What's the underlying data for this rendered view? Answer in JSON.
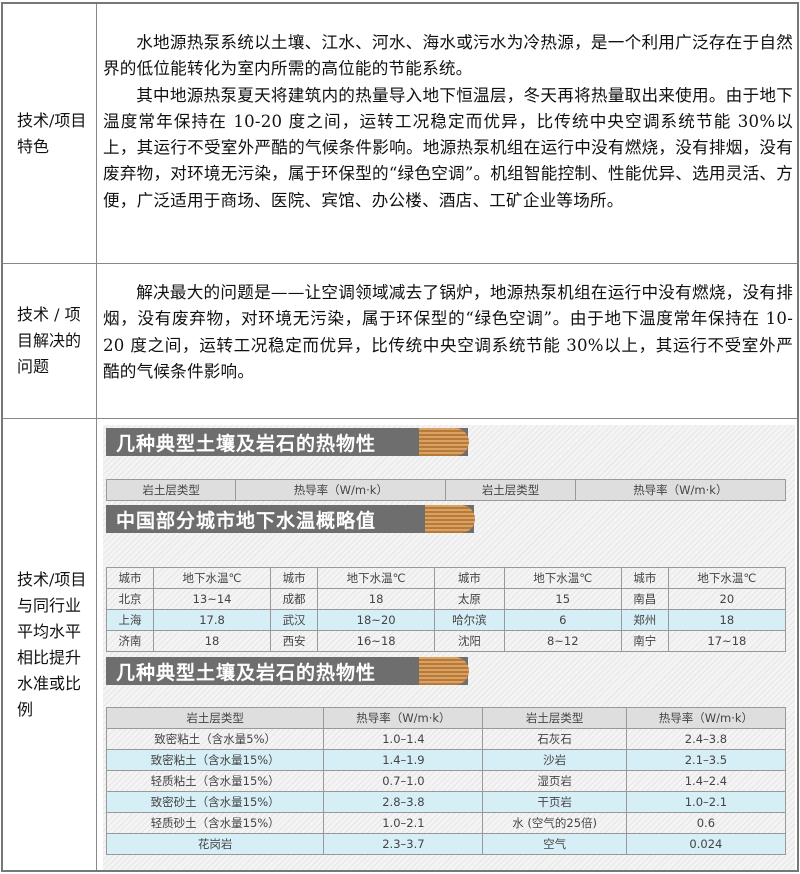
{
  "rows": [
    {
      "label": "技术/项目特色",
      "paragraphs": [
        "水地源热泵系统以土壤、江水、河水、海水或污水为冷热源，是一个利用广泛存在于自然界的低位能转化为室内所需的高位能的节能系统。",
        "其中地源热泵夏天将建筑内的热量导入地下恒温层，冬天再将热量取出来使用。由于地下温度常年保持在 10-20 度之间，运转工况稳定而优异，比传统中央空调系统节能 30%以上，其运行不受室外严酷的气候条件影响。地源热泵机组在运行中没有燃烧，没有排烟，没有废弃物，对环境无污染，属于环保型的“绿色空调”。机组智能控制、性能优异、选用灵活、方便，广泛适用于商场、医院、宾馆、办公楼、酒店、工矿企业等场所。"
      ]
    },
    {
      "label": "技术 / 项目解决的问题",
      "paragraphs": [
        "解决最大的问题是——让空调领域减去了锅炉，地源热泵机组在运行中没有燃烧，没有排烟，没有废弃物，对环境无污染，属于环保型的“绿色空调”。由于地下温度常年保持在 10-20 度之间，运转工况稳定而优异，比传统中央空调系统节能 30%以上，其运行不受室外严酷的气候条件影响。"
      ]
    },
    {
      "label": "技术/项目与同行业平均水平相比提升水准或比例"
    }
  ],
  "figure": {
    "title1": "几种典型土壤及岩石的热物性",
    "header1": [
      "岩土层类型",
      "热导率（W/m·k）",
      "岩土层类型",
      "热导率（W/m·k）"
    ],
    "title2": "中国部分城市地下水温概略值",
    "water_table": [
      [
        "城市",
        "地下水温℃",
        "城市",
        "地下水温℃",
        "城市",
        "地下水温℃",
        "城市",
        "地下水温℃"
      ],
      [
        "北京",
        "13~14",
        "成都",
        "18",
        "太原",
        "15",
        "南昌",
        "20"
      ],
      [
        "上海",
        "17.8",
        "武汉",
        "18~20",
        "哈尔滨",
        "6",
        "郑州",
        "18"
      ],
      [
        "济南",
        "18",
        "西安",
        "16~18",
        "沈阳",
        "8~12",
        "南宁",
        "17~18"
      ]
    ],
    "title3": "几种典型土壤及岩石的热物性",
    "soil_table": [
      [
        "岩土层类型",
        "热导率（W/m·k）",
        "岩土层类型",
        "热导率（W/m·k）"
      ],
      [
        "致密粘土（含水量5%）",
        "1.0–1.4",
        "石灰石",
        "2.4–3.8"
      ],
      [
        "致密粘土（含水量15%）",
        "1.4–1.9",
        "沙岩",
        "2.1–3.5"
      ],
      [
        "轻质粘土（含水量15%）",
        "0.7–1.0",
        "湿页岩",
        "1.4–2.4"
      ],
      [
        "致密砂土（含水量15%）",
        "2.8–3.8",
        "干页岩",
        "1.0–2.1"
      ],
      [
        "轻质砂土（含水量15%）",
        "1.0–2.1",
        "水 (空气的25倍)",
        "0.6"
      ],
      [
        "花岗岩",
        "2.3–3.7",
        "空气",
        "0.024"
      ]
    ],
    "highlight_color": "#d6eef5"
  }
}
